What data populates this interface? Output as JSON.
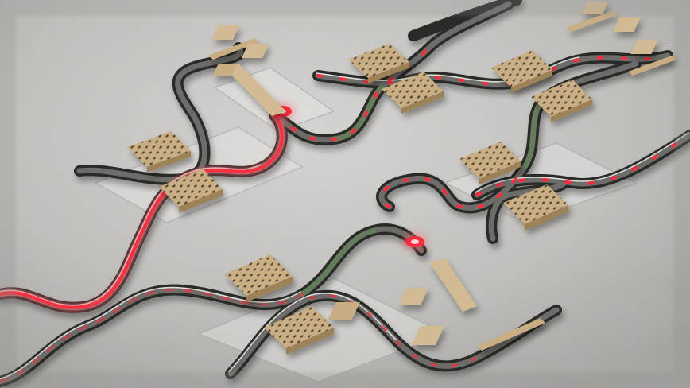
{
  "scene": {
    "subject": "photonic-integrated-circuit-render",
    "colors": {
      "surface_light": "#d6d5d2",
      "surface_mid": "#bdbcb8",
      "surface_dark": "#9f9e9a",
      "waveguide_edge": "#2b2a28",
      "waveguide_core": "#6d6c68",
      "waveguide_highlight": "#f3f3f1",
      "pad_top": "#c9ae84",
      "pad_side": "#9d8259",
      "pad_dot": "#3a2e20",
      "laser_red": "#ff2a3c",
      "laser_glow": "#ff6b78",
      "green_tint": "#5f8a55"
    }
  }
}
